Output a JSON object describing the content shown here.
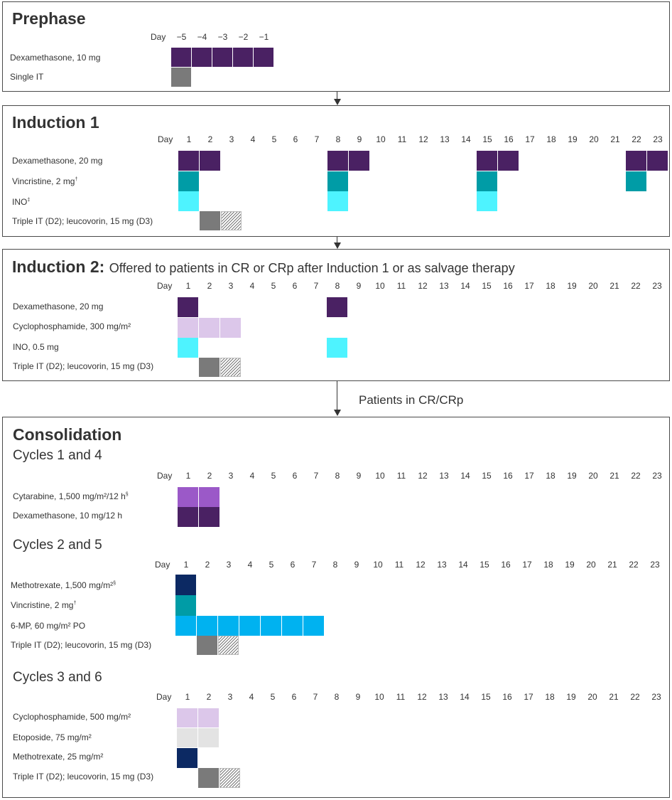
{
  "day_label": "Day",
  "colors": {
    "dex": "#4a2163",
    "vincristine": "#009ca6",
    "ino": "#4ef3ff",
    "it": "#7a7a7a",
    "cyclophosphamide": "#dcc7ea",
    "cytarabine": "#9b59c8",
    "methotrexate": "#0c2963",
    "mp": "#00b2f0",
    "etoposide": "#e3e3e3"
  },
  "prephase": {
    "title": "Prephase",
    "days": [
      "−5",
      "−4",
      "−3",
      "−2",
      "−1"
    ],
    "rows": [
      {
        "label": "Dexamethasone, 10 mg",
        "sup": ""
      },
      {
        "label": "Single IT",
        "sup": ""
      }
    ]
  },
  "induction1": {
    "title": "Induction 1",
    "days": [
      "1",
      "2",
      "3",
      "4",
      "5",
      "6",
      "7",
      "8",
      "9",
      "10",
      "11",
      "12",
      "13",
      "14",
      "15",
      "16",
      "17",
      "18",
      "19",
      "20",
      "21",
      "22",
      "23"
    ],
    "rows": [
      {
        "label": "Dexamethasone, 20 mg",
        "sup": ""
      },
      {
        "label": "Vincristine, 2 mg",
        "sup": "†"
      },
      {
        "label": "INO",
        "sup": "‡"
      },
      {
        "label": "Triple IT (D2); leucovorin, 15 mg (D3)",
        "sup": ""
      }
    ]
  },
  "induction2": {
    "title": "Induction 2:",
    "subtitle": "Offered to patients in CR or CRp after Induction 1 or as salvage therapy",
    "days": [
      "1",
      "2",
      "3",
      "4",
      "5",
      "6",
      "7",
      "8",
      "9",
      "10",
      "11",
      "12",
      "13",
      "14",
      "15",
      "16",
      "17",
      "18",
      "19",
      "20",
      "21",
      "22",
      "23"
    ],
    "rows": [
      {
        "label": "Dexamethasone, 20 mg",
        "sup": ""
      },
      {
        "label": "Cyclophosphamide, 300 mg/m²",
        "sup": ""
      },
      {
        "label": "INO, 0.5 mg",
        "sup": ""
      },
      {
        "label": "Triple IT (D2); leucovorin, 15 mg (D3)",
        "sup": ""
      }
    ]
  },
  "arrow_note": "Patients in CR/CRp",
  "consolidation": {
    "title": "Consolidation",
    "days": [
      "1",
      "2",
      "3",
      "4",
      "5",
      "6",
      "7",
      "8",
      "9",
      "10",
      "11",
      "12",
      "13",
      "14",
      "15",
      "16",
      "17",
      "18",
      "19",
      "20",
      "21",
      "22",
      "23"
    ],
    "cycles_a": {
      "title": "Cycles 1 and 4",
      "rows": [
        {
          "label": "Cytarabine, 1,500 mg/m²/12 h",
          "sup": "§"
        },
        {
          "label": "Dexamethasone, 10 mg/12 h",
          "sup": ""
        }
      ]
    },
    "cycles_b": {
      "title": "Cycles 2 and 5",
      "rows": [
        {
          "label": "Methotrexate, 1,500 mg/m²",
          "sup": "§"
        },
        {
          "label": "Vincristine, 2 mg",
          "sup": "†"
        },
        {
          "label": "6-MP, 60 mg/m² PO",
          "sup": ""
        },
        {
          "label": "Triple IT (D2); leucovorin, 15 mg (D3)",
          "sup": ""
        }
      ]
    },
    "cycles_c": {
      "title": "Cycles 3 and 6",
      "rows": [
        {
          "label": "Cyclophosphamide, 500 mg/m²",
          "sup": ""
        },
        {
          "label": "Etoposide, 75 mg/m²",
          "sup": ""
        },
        {
          "label": "Methotrexate, 25 mg/m²",
          "sup": ""
        },
        {
          "label": "Triple IT (D2); leucovorin, 15 mg (D3)",
          "sup": ""
        }
      ]
    }
  }
}
